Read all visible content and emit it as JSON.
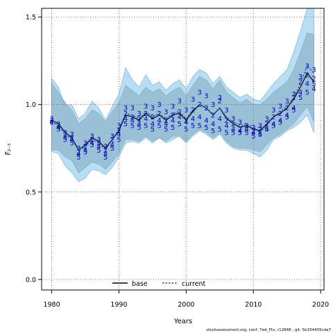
{
  "chart_data": {
    "type": "line",
    "xlabel": "Years",
    "ylabel": "F̅₂₋₅",
    "xlim": [
      1978.5,
      2020.5
    ],
    "ylim": [
      -0.06,
      1.55
    ],
    "xticks": [
      "1980",
      "1990",
      "2000",
      "2010",
      "2020"
    ],
    "yticks": [
      "0.0",
      "0.5",
      "1.0",
      "1.5"
    ],
    "grid": true,
    "legend_position": "bottom-center",
    "footnote": "stockassessment.org, conf: 7wk_Ftx, r12848 , git: 5b334405cda7",
    "x": [
      1980,
      1981,
      1982,
      1983,
      1984,
      1985,
      1986,
      1987,
      1988,
      1989,
      1990,
      1991,
      1992,
      1993,
      1994,
      1995,
      1996,
      1997,
      1998,
      1999,
      2000,
      2001,
      2002,
      2003,
      2004,
      2005,
      2006,
      2007,
      2008,
      2009,
      2010,
      2011,
      2012,
      2013,
      2014,
      2015,
      2016,
      2017,
      2018,
      2019
    ],
    "series": [
      {
        "name": "base",
        "color": "#000000",
        "values": [
          0.91,
          0.89,
          0.84,
          0.81,
          0.74,
          0.77,
          0.81,
          0.79,
          0.75,
          0.8,
          0.85,
          0.94,
          0.93,
          0.91,
          0.95,
          0.92,
          0.94,
          0.91,
          0.94,
          0.95,
          0.91,
          0.96,
          1.0,
          0.98,
          0.94,
          0.98,
          0.92,
          0.89,
          0.87,
          0.88,
          0.86,
          0.85,
          0.89,
          0.93,
          0.95,
          0.98,
          1.03,
          1.1,
          1.18,
          1.13
        ],
        "lower": [
          0.74,
          0.74,
          0.7,
          0.68,
          0.61,
          0.64,
          0.67,
          0.66,
          0.63,
          0.67,
          0.72,
          0.8,
          0.8,
          0.79,
          0.82,
          0.79,
          0.81,
          0.79,
          0.82,
          0.82,
          0.79,
          0.83,
          0.86,
          0.84,
          0.81,
          0.84,
          0.79,
          0.76,
          0.75,
          0.75,
          0.74,
          0.73,
          0.77,
          0.81,
          0.83,
          0.86,
          0.89,
          0.94,
          0.99,
          0.9
        ],
        "upper": [
          1.12,
          1.07,
          1.01,
          0.97,
          0.89,
          0.92,
          0.97,
          0.95,
          0.9,
          0.96,
          1.01,
          1.11,
          1.08,
          1.05,
          1.1,
          1.07,
          1.09,
          1.05,
          1.08,
          1.1,
          1.05,
          1.11,
          1.16,
          1.14,
          1.09,
          1.14,
          1.07,
          1.04,
          1.01,
          1.03,
          1.0,
          1.0,
          1.03,
          1.07,
          1.1,
          1.13,
          1.2,
          1.3,
          1.41,
          1.4
        ]
      },
      {
        "name": "current",
        "color": "#1f4fd1",
        "dashed": true,
        "values": [
          0.9,
          0.88,
          0.83,
          0.8,
          0.74,
          0.76,
          0.8,
          0.78,
          0.74,
          0.8,
          0.86,
          0.95,
          0.94,
          0.92,
          0.96,
          0.93,
          0.95,
          0.92,
          0.95,
          0.96,
          0.92,
          0.97,
          1.0,
          0.98,
          0.94,
          0.98,
          0.93,
          0.9,
          0.88,
          0.89,
          0.87,
          0.84,
          0.88,
          0.93,
          0.96,
          0.99,
          1.04,
          1.12,
          1.22,
          1.18
        ],
        "lower": [
          0.73,
          0.72,
          0.65,
          0.61,
          0.56,
          0.58,
          0.63,
          0.62,
          0.6,
          0.64,
          0.7,
          0.78,
          0.79,
          0.78,
          0.81,
          0.78,
          0.81,
          0.78,
          0.8,
          0.82,
          0.78,
          0.82,
          0.85,
          0.83,
          0.8,
          0.83,
          0.78,
          0.75,
          0.74,
          0.74,
          0.72,
          0.7,
          0.74,
          0.8,
          0.82,
          0.85,
          0.87,
          0.9,
          0.94,
          0.84
        ],
        "upper": [
          1.15,
          1.1,
          0.99,
          1.0,
          0.92,
          0.95,
          1.02,
          0.98,
          0.91,
          0.99,
          1.06,
          1.21,
          1.14,
          1.1,
          1.17,
          1.11,
          1.13,
          1.08,
          1.12,
          1.14,
          1.09,
          1.16,
          1.2,
          1.18,
          1.12,
          1.16,
          1.1,
          1.07,
          1.04,
          1.06,
          1.03,
          1.02,
          1.07,
          1.12,
          1.16,
          1.2,
          1.3,
          1.42,
          1.55,
          1.55
        ]
      }
    ],
    "age_marks": [
      {
        "label": "2",
        "values": [
          0.91,
          0.88,
          0.83,
          0.81,
          0.73,
          0.76,
          0.8,
          0.78,
          0.74,
          0.8,
          0.85,
          0.95,
          0.93,
          0.92,
          0.95,
          0.93,
          0.95,
          0.91,
          0.94,
          0.96,
          0.91,
          0.97,
          1.0,
          0.98,
          0.94,
          1.02,
          0.91,
          0.89,
          0.86,
          0.88,
          0.85,
          0.86,
          0.89,
          0.93,
          0.95,
          0.98,
          1.04,
          1.13,
          1.17,
          1.15
        ]
      },
      {
        "label": "3",
        "values": [
          0.92,
          0.89,
          0.84,
          0.83,
          0.75,
          0.78,
          0.82,
          0.8,
          0.76,
          0.82,
          0.88,
          0.98,
          0.98,
          0.95,
          0.99,
          0.98,
          1.0,
          0.96,
          0.99,
          1.02,
          0.97,
          1.03,
          1.07,
          1.05,
          1.0,
          1.04,
          0.97,
          0.92,
          0.9,
          0.88,
          0.87,
          0.88,
          0.92,
          0.97,
          0.99,
          1.02,
          1.06,
          1.16,
          1.22,
          1.2
        ]
      },
      {
        "label": "4",
        "values": [
          0.9,
          0.87,
          0.81,
          0.8,
          0.72,
          0.74,
          0.78,
          0.76,
          0.72,
          0.77,
          0.83,
          0.92,
          0.91,
          0.89,
          0.92,
          0.89,
          0.91,
          0.89,
          0.91,
          0.93,
          0.9,
          0.92,
          0.93,
          0.91,
          0.89,
          0.92,
          0.88,
          0.86,
          0.85,
          0.86,
          0.84,
          0.83,
          0.86,
          0.89,
          0.91,
          0.94,
          0.98,
          1.07,
          1.12,
          1.09
        ]
      },
      {
        "label": "5",
        "values": [
          0.9,
          0.86,
          0.8,
          0.78,
          0.7,
          0.73,
          0.77,
          0.74,
          0.7,
          0.75,
          0.8,
          0.89,
          0.88,
          0.87,
          0.88,
          0.86,
          0.88,
          0.86,
          0.87,
          0.89,
          0.86,
          0.88,
          0.88,
          0.87,
          0.85,
          0.86,
          0.84,
          0.84,
          0.84,
          0.84,
          0.82,
          0.83,
          0.86,
          0.88,
          0.9,
          0.93,
          0.97,
          1.04,
          1.07,
          1.12
        ]
      }
    ]
  }
}
